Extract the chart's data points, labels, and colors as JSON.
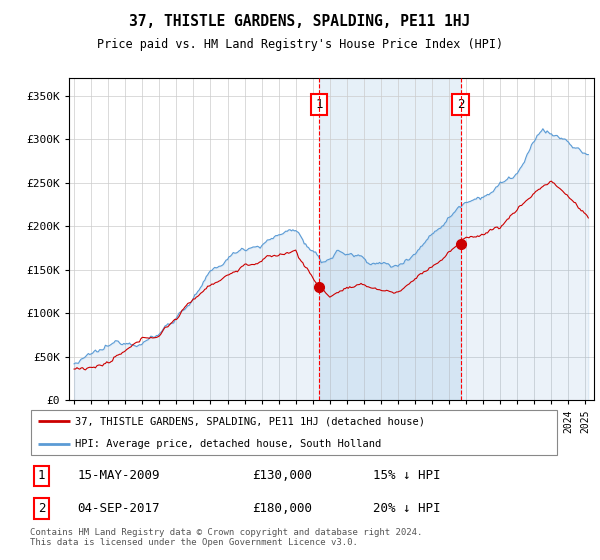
{
  "title": "37, THISTLE GARDENS, SPALDING, PE11 1HJ",
  "subtitle": "Price paid vs. HM Land Registry's House Price Index (HPI)",
  "xlim": [
    1994.7,
    2025.5
  ],
  "ylim": [
    0,
    370000
  ],
  "yticks": [
    0,
    50000,
    100000,
    150000,
    200000,
    250000,
    300000,
    350000
  ],
  "ytick_labels": [
    "£0",
    "£50K",
    "£100K",
    "£150K",
    "£200K",
    "£250K",
    "£300K",
    "£350K"
  ],
  "hpi_color": "#5b9bd5",
  "hpi_fill_color": "#ddeeff",
  "price_color": "#cc0000",
  "purchase1_x": 2009.37,
  "purchase1_y": 130000,
  "purchase2_x": 2017.67,
  "purchase2_y": 180000,
  "legend_line1": "37, THISTLE GARDENS, SPALDING, PE11 1HJ (detached house)",
  "legend_line2": "HPI: Average price, detached house, South Holland",
  "table_row1": [
    "1",
    "15-MAY-2009",
    "£130,000",
    "15% ↓ HPI"
  ],
  "table_row2": [
    "2",
    "04-SEP-2017",
    "£180,000",
    "20% ↓ HPI"
  ],
  "footnote": "Contains HM Land Registry data © Crown copyright and database right 2024.\nThis data is licensed under the Open Government Licence v3.0.",
  "background_color": "#ffffff",
  "grid_color": "#cccccc"
}
